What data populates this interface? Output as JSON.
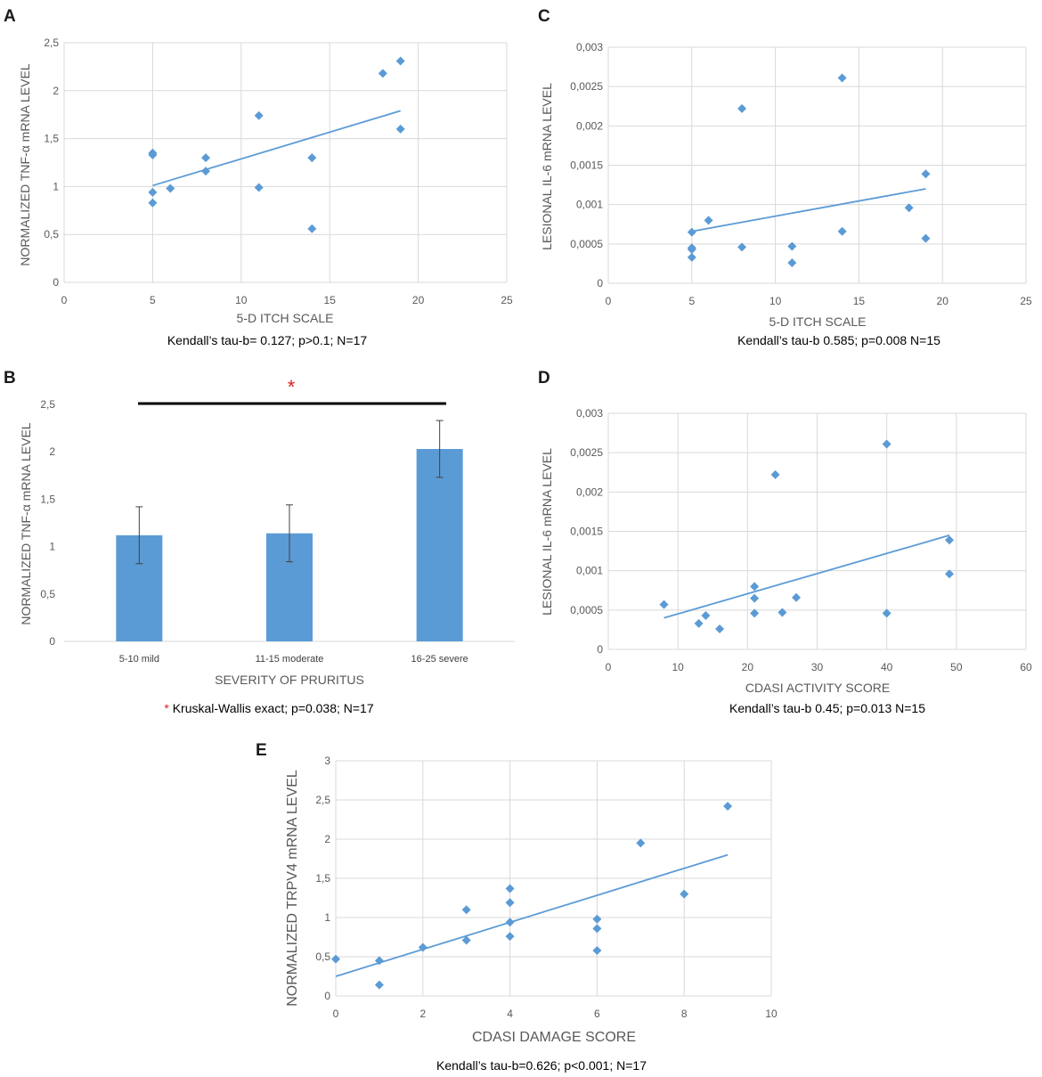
{
  "accent_color": "#5b9bd5",
  "chart_data": [
    {
      "panel": "A",
      "type": "scatter",
      "xlabel": "5-D ITCH SCALE",
      "ylabel": "NORMALIZED TNF-α mRNA LEVEL",
      "xlim": [
        0,
        25
      ],
      "ylim": [
        0,
        2.5
      ],
      "xticks": [
        0,
        5,
        10,
        15,
        20,
        25
      ],
      "xtick_labels": [
        "0",
        "5",
        "10",
        "15",
        "20",
        "25"
      ],
      "yticks": [
        0,
        0.5,
        1,
        1.5,
        2,
        2.5
      ],
      "ytick_labels": [
        "0",
        "0,5",
        "1",
        "1,5",
        "2",
        "2,5"
      ],
      "points": [
        [
          5,
          1.35
        ],
        [
          5,
          1.33
        ],
        [
          5,
          0.94
        ],
        [
          5,
          0.83
        ],
        [
          6,
          0.98
        ],
        [
          8,
          1.3
        ],
        [
          8,
          1.16
        ],
        [
          11,
          1.74
        ],
        [
          11,
          0.99
        ],
        [
          14,
          1.3
        ],
        [
          14,
          0.56
        ],
        [
          18,
          2.18
        ],
        [
          19,
          2.31
        ],
        [
          19,
          1.6
        ]
      ],
      "trendline": [
        [
          5,
          1.01
        ],
        [
          19,
          1.79
        ]
      ],
      "caption": "Kendall’s tau-b= 0.127;  p>0.1;  N=17"
    },
    {
      "panel": "B",
      "type": "bar",
      "xlabel": "SEVERITY OF PRURITUS",
      "ylabel": "NORMALIZED TNF-α mRNA  LEVEL",
      "ylim": [
        0,
        2.5
      ],
      "yticks": [
        0,
        0.5,
        1,
        1.5,
        2,
        2.5
      ],
      "ytick_labels": [
        "0",
        "0,5",
        "1",
        "1,5",
        "2",
        "2,5"
      ],
      "categories": [
        "5-10 mild",
        "11-15 moderate",
        "16-25 severe"
      ],
      "values": [
        1.12,
        1.14,
        2.03
      ],
      "errors": [
        0.3,
        0.3,
        0.3
      ],
      "significance_marker": "*",
      "caption_marker": "*",
      "caption": " Kruskal-Wallis exact; p=0.038;  N=17"
    },
    {
      "panel": "C",
      "type": "scatter",
      "xlabel": "5-D ITCH SCALE",
      "ylabel": "LESIONAL IL-6 mRNA LEVEL",
      "xlim": [
        0,
        25
      ],
      "ylim": [
        0,
        0.003
      ],
      "xticks": [
        0,
        5,
        10,
        15,
        20,
        25
      ],
      "xtick_labels": [
        "0",
        "5",
        "10",
        "15",
        "20",
        "25"
      ],
      "yticks": [
        0,
        0.0005,
        0.001,
        0.0015,
        0.002,
        0.0025,
        0.003
      ],
      "ytick_labels": [
        "0",
        "0,0005",
        "0,001",
        "0,0015",
        "0,002",
        "0,0025",
        "0,003"
      ],
      "points": [
        [
          5,
          0.00065
        ],
        [
          5,
          0.00045
        ],
        [
          5,
          0.00043
        ],
        [
          5,
          0.00033
        ],
        [
          6,
          0.0008
        ],
        [
          8,
          0.00222
        ],
        [
          8,
          0.00046
        ],
        [
          11,
          0.00047
        ],
        [
          11,
          0.00026
        ],
        [
          14,
          0.00261
        ],
        [
          14,
          0.00066
        ],
        [
          18,
          0.00096
        ],
        [
          19,
          0.00139
        ],
        [
          19,
          0.00057
        ]
      ],
      "trendline": [
        [
          5,
          0.00066
        ],
        [
          19,
          0.0012
        ]
      ],
      "caption": "Kendall’s tau-b 0.585; p=0.008  N=15"
    },
    {
      "panel": "D",
      "type": "scatter",
      "xlabel": "CDASI ACTIVITY SCORE",
      "ylabel": "LESIONAL IL-6 mRNA LEVEL",
      "xlim": [
        0,
        60
      ],
      "ylim": [
        0,
        0.003
      ],
      "xticks": [
        0,
        10,
        20,
        30,
        40,
        50,
        60
      ],
      "xtick_labels": [
        "0",
        "10",
        "20",
        "30",
        "40",
        "50",
        "60"
      ],
      "yticks": [
        0,
        0.0005,
        0.001,
        0.0015,
        0.002,
        0.0025,
        0.003
      ],
      "ytick_labels": [
        "0",
        "0,0005",
        "0,001",
        "0,0015",
        "0,002",
        "0,0025",
        "0,003"
      ],
      "points": [
        [
          8,
          0.00057
        ],
        [
          13,
          0.00033
        ],
        [
          14,
          0.00043
        ],
        [
          16,
          0.00026
        ],
        [
          21,
          0.0008
        ],
        [
          21,
          0.00065
        ],
        [
          21,
          0.00046
        ],
        [
          24,
          0.00222
        ],
        [
          25,
          0.00047
        ],
        [
          27,
          0.00066
        ],
        [
          40,
          0.00261
        ],
        [
          40,
          0.00046
        ],
        [
          49,
          0.00139
        ],
        [
          49,
          0.00096
        ]
      ],
      "trendline": [
        [
          8,
          0.0004
        ],
        [
          49,
          0.00145
        ]
      ],
      "caption": "Kendall’s tau-b 0.45; p=0.013  N=15"
    },
    {
      "panel": "E",
      "type": "scatter",
      "xlabel": "CDASI DAMAGE SCORE",
      "ylabel": "NORMALIZED TRPV4 mRNA LEVEL",
      "xlim": [
        0,
        10
      ],
      "ylim": [
        0,
        3
      ],
      "xticks": [
        0,
        2,
        4,
        6,
        8,
        10
      ],
      "xtick_labels": [
        "0",
        "2",
        "4",
        "6",
        "8",
        "10"
      ],
      "yticks": [
        0,
        0.5,
        1,
        1.5,
        2,
        2.5,
        3
      ],
      "ytick_labels": [
        "0",
        "0,5",
        "1",
        "1,5",
        "2",
        "2,5",
        "3"
      ],
      "points": [
        [
          0,
          0.47
        ],
        [
          1,
          0.45
        ],
        [
          1,
          0.14
        ],
        [
          2,
          0.62
        ],
        [
          3,
          1.1
        ],
        [
          3,
          0.71
        ],
        [
          4,
          1.37
        ],
        [
          4,
          1.19
        ],
        [
          4,
          0.94
        ],
        [
          4,
          0.76
        ],
        [
          6,
          0.98
        ],
        [
          6,
          0.86
        ],
        [
          6,
          0.58
        ],
        [
          7,
          1.95
        ],
        [
          8,
          1.3
        ],
        [
          9,
          2.42
        ]
      ],
      "trendline": [
        [
          0,
          0.25
        ],
        [
          9,
          1.8
        ]
      ],
      "caption": "Kendall’s tau-b=0.626;  p<0.001;  N=17"
    }
  ]
}
